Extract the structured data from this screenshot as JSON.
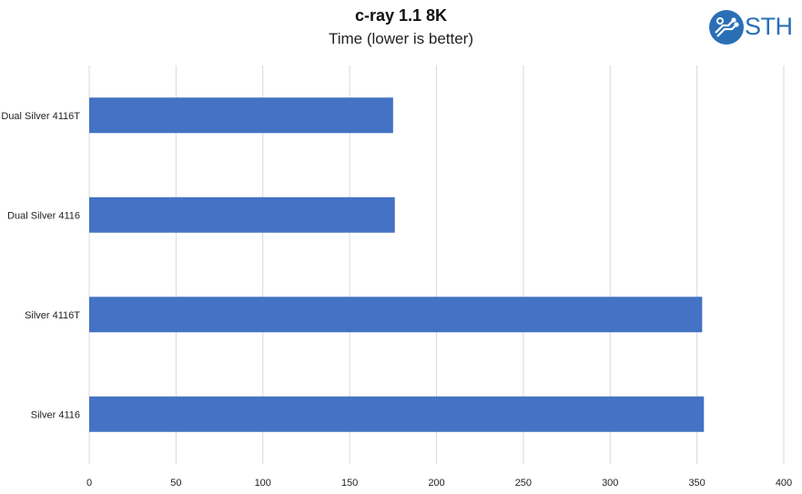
{
  "chart_data": {
    "type": "bar",
    "orientation": "horizontal",
    "title": "c-ray 1.1 8K",
    "subtitle": "Time (lower is better)",
    "categories": [
      "Dual Silver 4116T",
      "Dual Silver 4116",
      "Silver 4116T",
      "Silver 4116"
    ],
    "values": [
      175,
      176,
      353,
      354
    ],
    "xlim": [
      0,
      400
    ],
    "xticks": [
      "0",
      "50",
      "100",
      "150",
      "200",
      "250",
      "300",
      "350",
      "400"
    ],
    "grid": true,
    "bar_color": "#4472c4",
    "grid_color": "#d9d9d9"
  },
  "logo": {
    "text": "STH",
    "color": "#2a6fb5"
  }
}
